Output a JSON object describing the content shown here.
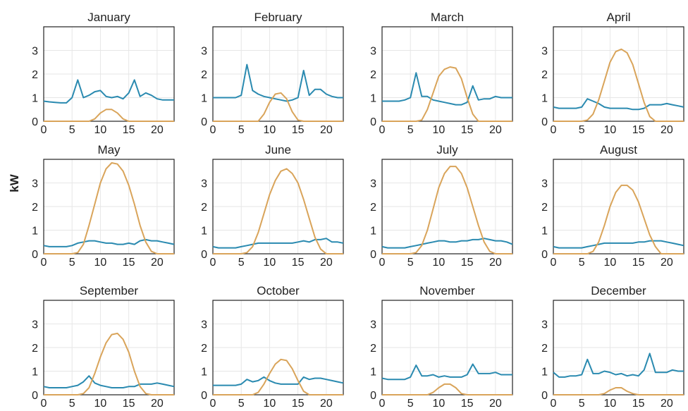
{
  "ylabel": "kW",
  "colors": {
    "consumption": "#2a8ab0",
    "generation": "#d9a45a",
    "grid": "#e6e6e6",
    "frame": "#222222"
  },
  "chart_data": [
    {
      "type": "line",
      "title": "January",
      "x": [
        0,
        1,
        2,
        3,
        4,
        5,
        6,
        7,
        8,
        9,
        10,
        11,
        12,
        13,
        14,
        15,
        16,
        17,
        18,
        19,
        20,
        21,
        22,
        23
      ],
      "ylim": [
        0,
        4
      ],
      "xlim": [
        0,
        23
      ],
      "xticks": [
        0,
        5,
        10,
        15,
        20
      ],
      "yticks": [
        0,
        1,
        2,
        3
      ],
      "series": [
        {
          "values": [
            0.85,
            0.82,
            0.8,
            0.78,
            0.78,
            1.0,
            1.75,
            1.0,
            1.1,
            1.25,
            1.3,
            1.05,
            1.0,
            1.05,
            0.95,
            1.2,
            1.75,
            1.05,
            1.2,
            1.1,
            0.95,
            0.9,
            0.9,
            0.9
          ]
        },
        {
          "values": [
            0,
            0,
            0,
            0,
            0,
            0,
            0,
            0,
            0,
            0.1,
            0.35,
            0.5,
            0.5,
            0.35,
            0.1,
            0,
            0,
            0,
            0,
            0,
            0,
            0,
            0,
            0
          ]
        }
      ]
    },
    {
      "type": "line",
      "title": "February",
      "x": [
        0,
        1,
        2,
        3,
        4,
        5,
        6,
        7,
        8,
        9,
        10,
        11,
        12,
        13,
        14,
        15,
        16,
        17,
        18,
        19,
        20,
        21,
        22,
        23
      ],
      "ylim": [
        0,
        4
      ],
      "xlim": [
        0,
        23
      ],
      "xticks": [
        0,
        5,
        10,
        15,
        20
      ],
      "yticks": [
        0,
        1,
        2,
        3
      ],
      "series": [
        {
          "values": [
            1.0,
            1.0,
            1.0,
            1.0,
            1.0,
            1.1,
            2.4,
            1.3,
            1.15,
            1.05,
            1.0,
            0.95,
            0.9,
            0.85,
            0.9,
            1.0,
            2.15,
            1.1,
            1.35,
            1.35,
            1.15,
            1.05,
            1.0,
            1.0
          ]
        },
        {
          "values": [
            0,
            0,
            0,
            0,
            0,
            0,
            0,
            0,
            0,
            0.3,
            0.8,
            1.15,
            1.2,
            0.95,
            0.4,
            0.05,
            0,
            0,
            0,
            0,
            0,
            0,
            0,
            0
          ]
        }
      ]
    },
    {
      "type": "line",
      "title": "March",
      "x": [
        0,
        1,
        2,
        3,
        4,
        5,
        6,
        7,
        8,
        9,
        10,
        11,
        12,
        13,
        14,
        15,
        16,
        17,
        18,
        19,
        20,
        21,
        22,
        23
      ],
      "ylim": [
        0,
        4
      ],
      "xlim": [
        0,
        23
      ],
      "xticks": [
        0,
        5,
        10,
        15,
        20
      ],
      "yticks": [
        0,
        1,
        2,
        3
      ],
      "series": [
        {
          "values": [
            0.85,
            0.85,
            0.85,
            0.85,
            0.9,
            1.0,
            2.05,
            1.05,
            1.05,
            0.9,
            0.85,
            0.8,
            0.75,
            0.7,
            0.7,
            0.8,
            1.5,
            0.9,
            0.95,
            0.95,
            1.05,
            1.0,
            1.0,
            1.0
          ]
        },
        {
          "values": [
            0,
            0,
            0,
            0,
            0,
            0,
            0,
            0.05,
            0.5,
            1.2,
            1.9,
            2.2,
            2.3,
            2.25,
            1.8,
            1.0,
            0.3,
            0,
            0,
            0,
            0,
            0,
            0,
            0
          ]
        }
      ]
    },
    {
      "type": "line",
      "title": "April",
      "x": [
        0,
        1,
        2,
        3,
        4,
        5,
        6,
        7,
        8,
        9,
        10,
        11,
        12,
        13,
        14,
        15,
        16,
        17,
        18,
        19,
        20,
        21,
        22,
        23
      ],
      "ylim": [
        0,
        4
      ],
      "xlim": [
        0,
        23
      ],
      "xticks": [
        0,
        5,
        10,
        15,
        20
      ],
      "yticks": [
        0,
        1,
        2,
        3
      ],
      "series": [
        {
          "values": [
            0.6,
            0.55,
            0.55,
            0.55,
            0.55,
            0.6,
            0.95,
            0.85,
            0.75,
            0.6,
            0.55,
            0.55,
            0.55,
            0.55,
            0.5,
            0.5,
            0.55,
            0.7,
            0.7,
            0.7,
            0.75,
            0.7,
            0.65,
            0.6
          ]
        },
        {
          "values": [
            0,
            0,
            0,
            0,
            0,
            0,
            0.05,
            0.3,
            0.9,
            1.7,
            2.5,
            2.95,
            3.05,
            2.9,
            2.4,
            1.6,
            0.8,
            0.2,
            0,
            0,
            0,
            0,
            0,
            0
          ]
        }
      ]
    },
    {
      "type": "line",
      "title": "May",
      "x": [
        0,
        1,
        2,
        3,
        4,
        5,
        6,
        7,
        8,
        9,
        10,
        11,
        12,
        13,
        14,
        15,
        16,
        17,
        18,
        19,
        20,
        21,
        22,
        23
      ],
      "ylim": [
        0,
        4
      ],
      "xlim": [
        0,
        23
      ],
      "xticks": [
        0,
        5,
        10,
        15,
        20
      ],
      "yticks": [
        0,
        1,
        2,
        3
      ],
      "series": [
        {
          "values": [
            0.35,
            0.3,
            0.3,
            0.3,
            0.3,
            0.35,
            0.45,
            0.5,
            0.55,
            0.55,
            0.5,
            0.45,
            0.45,
            0.4,
            0.4,
            0.45,
            0.4,
            0.55,
            0.6,
            0.55,
            0.55,
            0.5,
            0.45,
            0.4
          ]
        },
        {
          "values": [
            0,
            0,
            0,
            0,
            0,
            0,
            0.05,
            0.4,
            1.2,
            2.1,
            3.0,
            3.6,
            3.85,
            3.8,
            3.5,
            2.9,
            2.1,
            1.2,
            0.5,
            0.1,
            0,
            0,
            0,
            0
          ]
        }
      ]
    },
    {
      "type": "line",
      "title": "June",
      "x": [
        0,
        1,
        2,
        3,
        4,
        5,
        6,
        7,
        8,
        9,
        10,
        11,
        12,
        13,
        14,
        15,
        16,
        17,
        18,
        19,
        20,
        21,
        22,
        23
      ],
      "ylim": [
        0,
        4
      ],
      "xlim": [
        0,
        23
      ],
      "xticks": [
        0,
        5,
        10,
        15,
        20
      ],
      "yticks": [
        0,
        1,
        2,
        3
      ],
      "series": [
        {
          "values": [
            0.3,
            0.25,
            0.25,
            0.25,
            0.25,
            0.3,
            0.35,
            0.4,
            0.45,
            0.45,
            0.45,
            0.45,
            0.45,
            0.45,
            0.45,
            0.5,
            0.55,
            0.5,
            0.6,
            0.6,
            0.65,
            0.5,
            0.5,
            0.45
          ]
        },
        {
          "values": [
            0,
            0,
            0,
            0,
            0,
            0,
            0.05,
            0.3,
            0.9,
            1.7,
            2.5,
            3.1,
            3.5,
            3.6,
            3.4,
            3.0,
            2.3,
            1.5,
            0.7,
            0.2,
            0,
            0,
            0,
            0
          ]
        }
      ]
    },
    {
      "type": "line",
      "title": "July",
      "x": [
        0,
        1,
        2,
        3,
        4,
        5,
        6,
        7,
        8,
        9,
        10,
        11,
        12,
        13,
        14,
        15,
        16,
        17,
        18,
        19,
        20,
        21,
        22,
        23
      ],
      "ylim": [
        0,
        4
      ],
      "xlim": [
        0,
        23
      ],
      "xticks": [
        0,
        5,
        10,
        15,
        20
      ],
      "yticks": [
        0,
        1,
        2,
        3
      ],
      "series": [
        {
          "values": [
            0.3,
            0.25,
            0.25,
            0.25,
            0.25,
            0.3,
            0.35,
            0.4,
            0.45,
            0.5,
            0.55,
            0.55,
            0.5,
            0.5,
            0.55,
            0.55,
            0.6,
            0.6,
            0.65,
            0.6,
            0.55,
            0.55,
            0.5,
            0.4
          ]
        },
        {
          "values": [
            0,
            0,
            0,
            0,
            0,
            0,
            0.05,
            0.35,
            1.0,
            1.9,
            2.8,
            3.4,
            3.7,
            3.7,
            3.4,
            2.8,
            2.0,
            1.2,
            0.5,
            0.1,
            0,
            0,
            0,
            0
          ]
        }
      ]
    },
    {
      "type": "line",
      "title": "August",
      "x": [
        0,
        1,
        2,
        3,
        4,
        5,
        6,
        7,
        8,
        9,
        10,
        11,
        12,
        13,
        14,
        15,
        16,
        17,
        18,
        19,
        20,
        21,
        22,
        23
      ],
      "ylim": [
        0,
        4
      ],
      "xlim": [
        0,
        23
      ],
      "xticks": [
        0,
        5,
        10,
        15,
        20
      ],
      "yticks": [
        0,
        1,
        2,
        3
      ],
      "series": [
        {
          "values": [
            0.3,
            0.25,
            0.25,
            0.25,
            0.25,
            0.25,
            0.3,
            0.35,
            0.4,
            0.45,
            0.45,
            0.45,
            0.45,
            0.45,
            0.45,
            0.5,
            0.5,
            0.55,
            0.55,
            0.55,
            0.5,
            0.45,
            0.4,
            0.35
          ]
        },
        {
          "values": [
            0,
            0,
            0,
            0,
            0,
            0,
            0,
            0.1,
            0.5,
            1.2,
            2.0,
            2.6,
            2.9,
            2.9,
            2.7,
            2.2,
            1.5,
            0.8,
            0.3,
            0,
            0,
            0,
            0,
            0
          ]
        }
      ]
    },
    {
      "type": "line",
      "title": "September",
      "x": [
        0,
        1,
        2,
        3,
        4,
        5,
        6,
        7,
        8,
        9,
        10,
        11,
        12,
        13,
        14,
        15,
        16,
        17,
        18,
        19,
        20,
        21,
        22,
        23
      ],
      "ylim": [
        0,
        4
      ],
      "xlim": [
        0,
        23
      ],
      "xticks": [
        0,
        5,
        10,
        15,
        20
      ],
      "yticks": [
        0,
        1,
        2,
        3
      ],
      "series": [
        {
          "values": [
            0.35,
            0.3,
            0.3,
            0.3,
            0.3,
            0.35,
            0.4,
            0.55,
            0.8,
            0.5,
            0.4,
            0.35,
            0.3,
            0.3,
            0.3,
            0.35,
            0.35,
            0.45,
            0.45,
            0.45,
            0.5,
            0.45,
            0.4,
            0.35
          ]
        },
        {
          "values": [
            0,
            0,
            0,
            0,
            0,
            0,
            0,
            0.05,
            0.3,
            0.9,
            1.6,
            2.2,
            2.55,
            2.6,
            2.35,
            1.8,
            1.0,
            0.35,
            0.05,
            0,
            0,
            0,
            0,
            0
          ]
        }
      ]
    },
    {
      "type": "line",
      "title": "October",
      "x": [
        0,
        1,
        2,
        3,
        4,
        5,
        6,
        7,
        8,
        9,
        10,
        11,
        12,
        13,
        14,
        15,
        16,
        17,
        18,
        19,
        20,
        21,
        22,
        23
      ],
      "ylim": [
        0,
        4
      ],
      "xlim": [
        0,
        23
      ],
      "xticks": [
        0,
        5,
        10,
        15,
        20
      ],
      "yticks": [
        0,
        1,
        2,
        3
      ],
      "series": [
        {
          "values": [
            0.4,
            0.4,
            0.4,
            0.4,
            0.4,
            0.45,
            0.65,
            0.55,
            0.6,
            0.75,
            0.6,
            0.5,
            0.45,
            0.45,
            0.45,
            0.45,
            0.75,
            0.65,
            0.7,
            0.7,
            0.65,
            0.6,
            0.55,
            0.5
          ]
        },
        {
          "values": [
            0,
            0,
            0,
            0,
            0,
            0,
            0,
            0,
            0.1,
            0.45,
            0.9,
            1.3,
            1.5,
            1.45,
            1.1,
            0.6,
            0.15,
            0,
            0,
            0,
            0,
            0,
            0,
            0
          ]
        }
      ]
    },
    {
      "type": "line",
      "title": "November",
      "x": [
        0,
        1,
        2,
        3,
        4,
        5,
        6,
        7,
        8,
        9,
        10,
        11,
        12,
        13,
        14,
        15,
        16,
        17,
        18,
        19,
        20,
        21,
        22,
        23
      ],
      "ylim": [
        0,
        4
      ],
      "xlim": [
        0,
        23
      ],
      "xticks": [
        0,
        5,
        10,
        15,
        20
      ],
      "yticks": [
        0,
        1,
        2,
        3
      ],
      "series": [
        {
          "values": [
            0.7,
            0.65,
            0.65,
            0.65,
            0.65,
            0.75,
            1.25,
            0.8,
            0.8,
            0.85,
            0.75,
            0.8,
            0.75,
            0.75,
            0.75,
            0.85,
            1.3,
            0.9,
            0.9,
            0.9,
            0.95,
            0.85,
            0.85,
            0.85
          ]
        },
        {
          "values": [
            0,
            0,
            0,
            0,
            0,
            0,
            0,
            0,
            0,
            0.1,
            0.3,
            0.45,
            0.45,
            0.3,
            0.05,
            0,
            0,
            0,
            0,
            0,
            0,
            0,
            0,
            0
          ]
        }
      ]
    },
    {
      "type": "line",
      "title": "December",
      "x": [
        0,
        1,
        2,
        3,
        4,
        5,
        6,
        7,
        8,
        9,
        10,
        11,
        12,
        13,
        14,
        15,
        16,
        17,
        18,
        19,
        20,
        21,
        22,
        23
      ],
      "ylim": [
        0,
        4
      ],
      "xlim": [
        0,
        23
      ],
      "xticks": [
        0,
        5,
        10,
        15,
        20
      ],
      "yticks": [
        0,
        1,
        2,
        3
      ],
      "series": [
        {
          "values": [
            0.95,
            0.75,
            0.75,
            0.8,
            0.8,
            0.85,
            1.5,
            0.9,
            0.9,
            1.0,
            0.95,
            0.85,
            0.9,
            0.8,
            0.85,
            0.8,
            1.05,
            1.75,
            0.95,
            0.95,
            0.95,
            1.05,
            1.0,
            1.0
          ]
        },
        {
          "values": [
            0,
            0,
            0,
            0,
            0,
            0,
            0,
            0,
            0,
            0.05,
            0.2,
            0.3,
            0.3,
            0.15,
            0.05,
            0,
            0,
            0,
            0,
            0,
            0,
            0,
            0,
            0
          ]
        }
      ]
    }
  ]
}
